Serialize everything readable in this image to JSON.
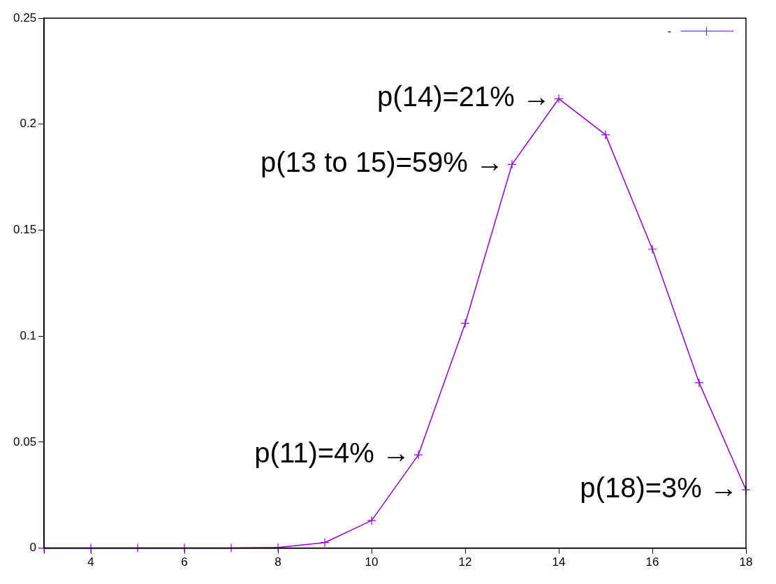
{
  "chart_data": {
    "type": "line",
    "x": [
      3,
      4,
      5,
      6,
      7,
      8,
      9,
      10,
      11,
      12,
      13,
      14,
      15,
      16,
      17,
      18
    ],
    "series": [
      {
        "name": "-",
        "color": "#9400d3",
        "values": [
          0,
          0,
          0,
          0,
          0,
          0.0003,
          0.0026,
          0.013,
          0.044,
          0.106,
          0.181,
          0.212,
          0.195,
          0.141,
          0.078,
          0.0275
        ]
      }
    ],
    "xlim": [
      3,
      18
    ],
    "xticks": [
      {
        "value": 3,
        "label": null
      },
      4,
      6,
      8,
      10,
      12,
      14,
      16,
      18
    ],
    "ylim": [
      0,
      0.25
    ],
    "yticks": [
      0,
      0.05,
      0.1,
      0.15,
      0.2,
      0.25
    ],
    "grid": false,
    "legend": "top right",
    "marker": "cross",
    "line_style": "solid",
    "annotations": [
      {
        "text": "p(14)=21% →",
        "x": 14,
        "y": 0.212
      },
      {
        "text": "p(13 to 15)=59% →",
        "x": 13,
        "y": 0.181
      },
      {
        "text": "p(11)=4% →",
        "x": 11,
        "y": 0.044
      },
      {
        "text": "p(18)=3% →",
        "x": 18,
        "y": 0.0275
      }
    ]
  }
}
